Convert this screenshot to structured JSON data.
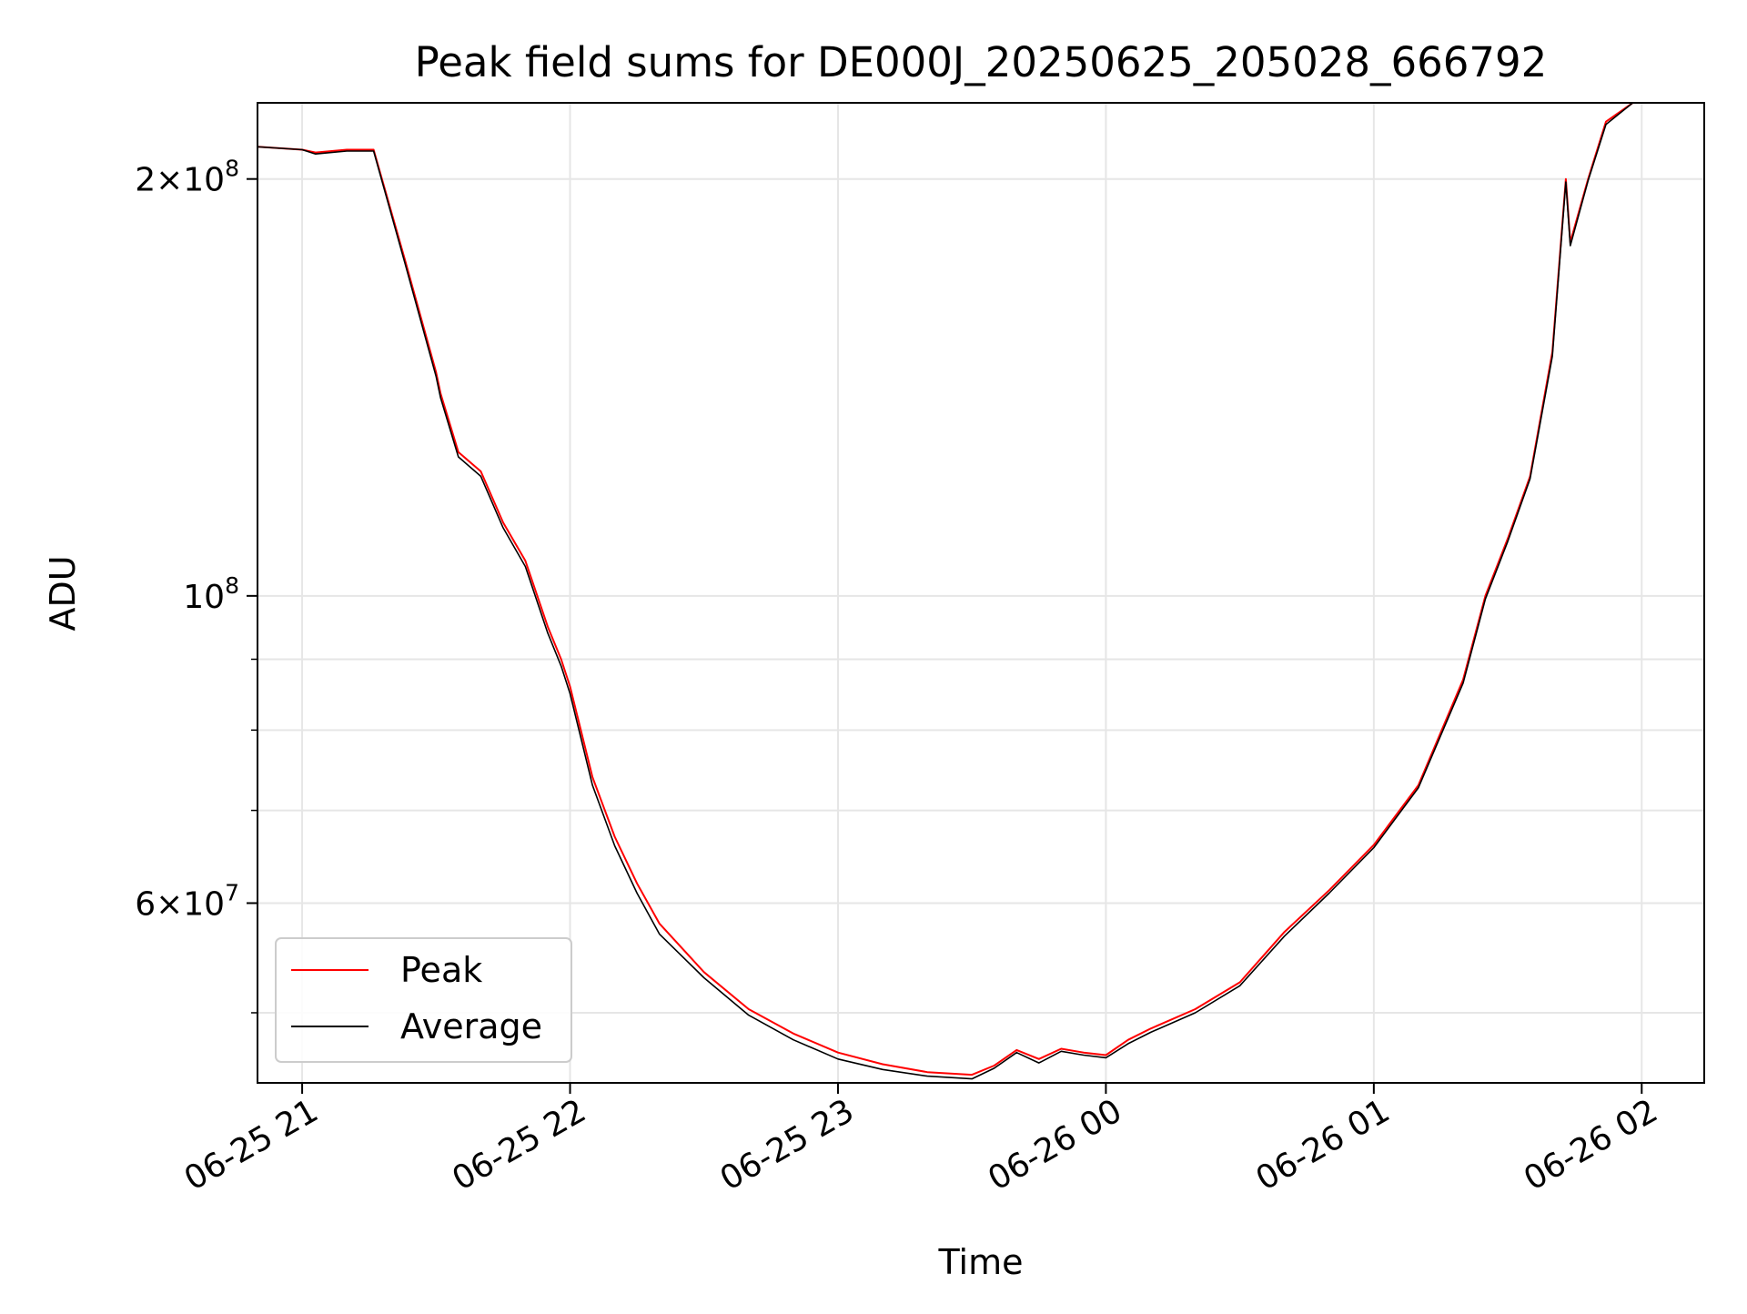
{
  "chart_data": {
    "type": "line",
    "title": "Peak field sums for DE000J_20250625_205028_666792",
    "xlabel": "Time",
    "ylabel": "ADU",
    "yscale": "log",
    "grid": true,
    "legend_position": "lower-left",
    "xlim": [
      "2025-06-25 20:50",
      "2025-06-26 02:14"
    ],
    "ylim": [
      44500000,
      227000000
    ],
    "x_ticks": [
      {
        "value": "2025-06-25 21:00",
        "label": "06-25 21"
      },
      {
        "value": "2025-06-25 22:00",
        "label": "06-25 22"
      },
      {
        "value": "2025-06-25 23:00",
        "label": "06-25 23"
      },
      {
        "value": "2025-06-26 00:00",
        "label": "06-26 00"
      },
      {
        "value": "2025-06-26 01:00",
        "label": "06-26 01"
      },
      {
        "value": "2025-06-26 02:00",
        "label": "06-26 02"
      }
    ],
    "y_ticks": [
      {
        "value": 200000000,
        "base": "2×10",
        "exp": "8"
      },
      {
        "value": 100000000,
        "base": "10",
        "exp": "8"
      },
      {
        "value": 60000000,
        "base": "6×10",
        "exp": "7"
      }
    ],
    "y_minor_ticks": [
      50000000,
      70000000,
      80000000,
      90000000
    ],
    "series": [
      {
        "name": "Peak",
        "color": "#ff0000",
        "x": [
          "2025-06-25 20:50",
          "2025-06-25 21:00",
          "2025-06-25 21:03",
          "2025-06-25 21:10",
          "2025-06-25 21:16",
          "2025-06-25 21:23",
          "2025-06-25 21:30",
          "2025-06-25 21:31",
          "2025-06-25 21:35",
          "2025-06-25 21:40",
          "2025-06-25 21:45",
          "2025-06-25 21:50",
          "2025-06-25 21:55",
          "2025-06-25 21:58",
          "2025-06-25 22:00",
          "2025-06-25 22:05",
          "2025-06-25 22:10",
          "2025-06-25 22:15",
          "2025-06-25 22:20",
          "2025-06-25 22:30",
          "2025-06-25 22:40",
          "2025-06-25 22:50",
          "2025-06-25 23:00",
          "2025-06-25 23:10",
          "2025-06-25 23:20",
          "2025-06-25 23:30",
          "2025-06-25 23:35",
          "2025-06-25 23:40",
          "2025-06-25 23:45",
          "2025-06-25 23:50",
          "2025-06-25 23:55",
          "2025-06-26 00:00",
          "2025-06-26 00:05",
          "2025-06-26 00:10",
          "2025-06-26 00:20",
          "2025-06-26 00:30",
          "2025-06-26 00:40",
          "2025-06-26 00:50",
          "2025-06-26 01:00",
          "2025-06-26 01:10",
          "2025-06-26 01:20",
          "2025-06-26 01:25",
          "2025-06-26 01:30",
          "2025-06-26 01:35",
          "2025-06-26 01:40",
          "2025-06-26 01:43",
          "2025-06-26 01:44",
          "2025-06-26 01:48",
          "2025-06-26 01:52",
          "2025-06-26 01:58"
        ],
        "y": [
          211000000,
          210000000,
          209000000,
          210000000,
          210000000,
          175000000,
          145000000,
          140000000,
          127000000,
          123000000,
          113000000,
          106000000,
          95000000,
          90000000,
          86000000,
          74000000,
          67000000,
          62000000,
          58000000,
          53500000,
          50300000,
          48300000,
          46800000,
          45900000,
          45300000,
          45100000,
          45800000,
          47000000,
          46300000,
          47100000,
          46800000,
          46600000,
          47800000,
          48700000,
          50300000,
          52600000,
          57200000,
          61300000,
          66100000,
          73000000,
          87000000,
          100000000,
          110000000,
          122000000,
          150000000,
          200000000,
          180000000,
          200000000,
          220000000,
          227000000
        ]
      },
      {
        "name": "Average",
        "color": "#000000",
        "x": [
          "2025-06-25 20:50",
          "2025-06-25 21:00",
          "2025-06-25 21:03",
          "2025-06-25 21:10",
          "2025-06-25 21:16",
          "2025-06-25 21:23",
          "2025-06-25 21:30",
          "2025-06-25 21:31",
          "2025-06-25 21:35",
          "2025-06-25 21:40",
          "2025-06-25 21:45",
          "2025-06-25 21:50",
          "2025-06-25 21:55",
          "2025-06-25 21:58",
          "2025-06-25 22:00",
          "2025-06-25 22:05",
          "2025-06-25 22:10",
          "2025-06-25 22:15",
          "2025-06-25 22:20",
          "2025-06-25 22:30",
          "2025-06-25 22:40",
          "2025-06-25 22:50",
          "2025-06-25 23:00",
          "2025-06-25 23:10",
          "2025-06-25 23:20",
          "2025-06-25 23:30",
          "2025-06-25 23:35",
          "2025-06-25 23:40",
          "2025-06-25 23:45",
          "2025-06-25 23:50",
          "2025-06-25 23:55",
          "2025-06-26 00:00",
          "2025-06-26 00:05",
          "2025-06-26 00:10",
          "2025-06-26 00:20",
          "2025-06-26 00:30",
          "2025-06-26 00:40",
          "2025-06-26 00:50",
          "2025-06-26 01:00",
          "2025-06-26 01:10",
          "2025-06-26 01:20",
          "2025-06-26 01:25",
          "2025-06-26 01:30",
          "2025-06-26 01:35",
          "2025-06-26 01:40",
          "2025-06-26 01:43",
          "2025-06-26 01:44",
          "2025-06-26 01:48",
          "2025-06-26 01:52",
          "2025-06-26 01:58"
        ],
        "y": [
          211000000,
          210000000,
          208500000,
          209500000,
          209500000,
          174000000,
          144000000,
          139000000,
          126000000,
          122000000,
          112000000,
          105000000,
          94000000,
          89000000,
          85000000,
          73000000,
          66000000,
          61000000,
          57000000,
          53000000,
          49800000,
          47800000,
          46300000,
          45500000,
          45000000,
          44800000,
          45600000,
          46800000,
          46000000,
          46900000,
          46600000,
          46400000,
          47500000,
          48400000,
          50000000,
          52300000,
          56800000,
          61000000,
          65800000,
          72700000,
          86500000,
          99500000,
          109500000,
          121500000,
          149000000,
          199000000,
          179000000,
          199500000,
          219000000,
          227000000
        ]
      }
    ]
  }
}
